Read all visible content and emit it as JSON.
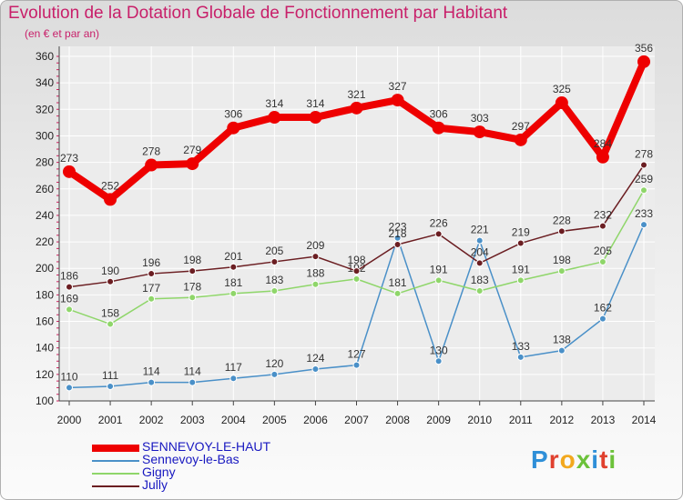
{
  "title": "Evolution de la Dotation Globale de Fonctionnement par Habitant",
  "subtitle": "(en € et par an)",
  "logo": {
    "text": "Proxiti",
    "letter_colors": [
      "#2f8fd8",
      "#e0402e",
      "#f2a81e",
      "#6cc23a",
      "#2f8fd8",
      "#e0402e",
      "#6cc23a"
    ]
  },
  "chart_data": {
    "type": "line",
    "x": [
      "2000",
      "2001",
      "2002",
      "2003",
      "2004",
      "2005",
      "2006",
      "2007",
      "2008",
      "2009",
      "2010",
      "2011",
      "2012",
      "2013",
      "2014"
    ],
    "ylim": [
      100,
      360
    ],
    "yticks": [
      100,
      120,
      140,
      160,
      180,
      200,
      220,
      240,
      260,
      280,
      300,
      320,
      340,
      360
    ],
    "grid": true,
    "legend_position": "bottom-left",
    "series": [
      {
        "name": "SENNEVOY-LE-HAUT",
        "color": "#ee0000",
        "emphasis": true,
        "values": [
          273,
          252,
          278,
          279,
          306,
          314,
          314,
          321,
          327,
          306,
          303,
          297,
          325,
          284,
          356
        ]
      },
      {
        "name": "Sennevoy-le-Bas",
        "color": "#4a90c8",
        "emphasis": false,
        "values": [
          110,
          111,
          114,
          114,
          117,
          120,
          124,
          127,
          223,
          130,
          221,
          133,
          138,
          162,
          233
        ]
      },
      {
        "name": "Gigny",
        "color": "#8fd66a",
        "emphasis": false,
        "values": [
          169,
          158,
          177,
          178,
          181,
          183,
          188,
          192,
          181,
          191,
          183,
          191,
          198,
          205,
          259
        ]
      },
      {
        "name": "Jully",
        "color": "#6b1e22",
        "emphasis": false,
        "values": [
          186,
          190,
          196,
          198,
          201,
          205,
          209,
          198,
          218,
          226,
          204,
          219,
          228,
          232,
          278
        ]
      }
    ]
  }
}
